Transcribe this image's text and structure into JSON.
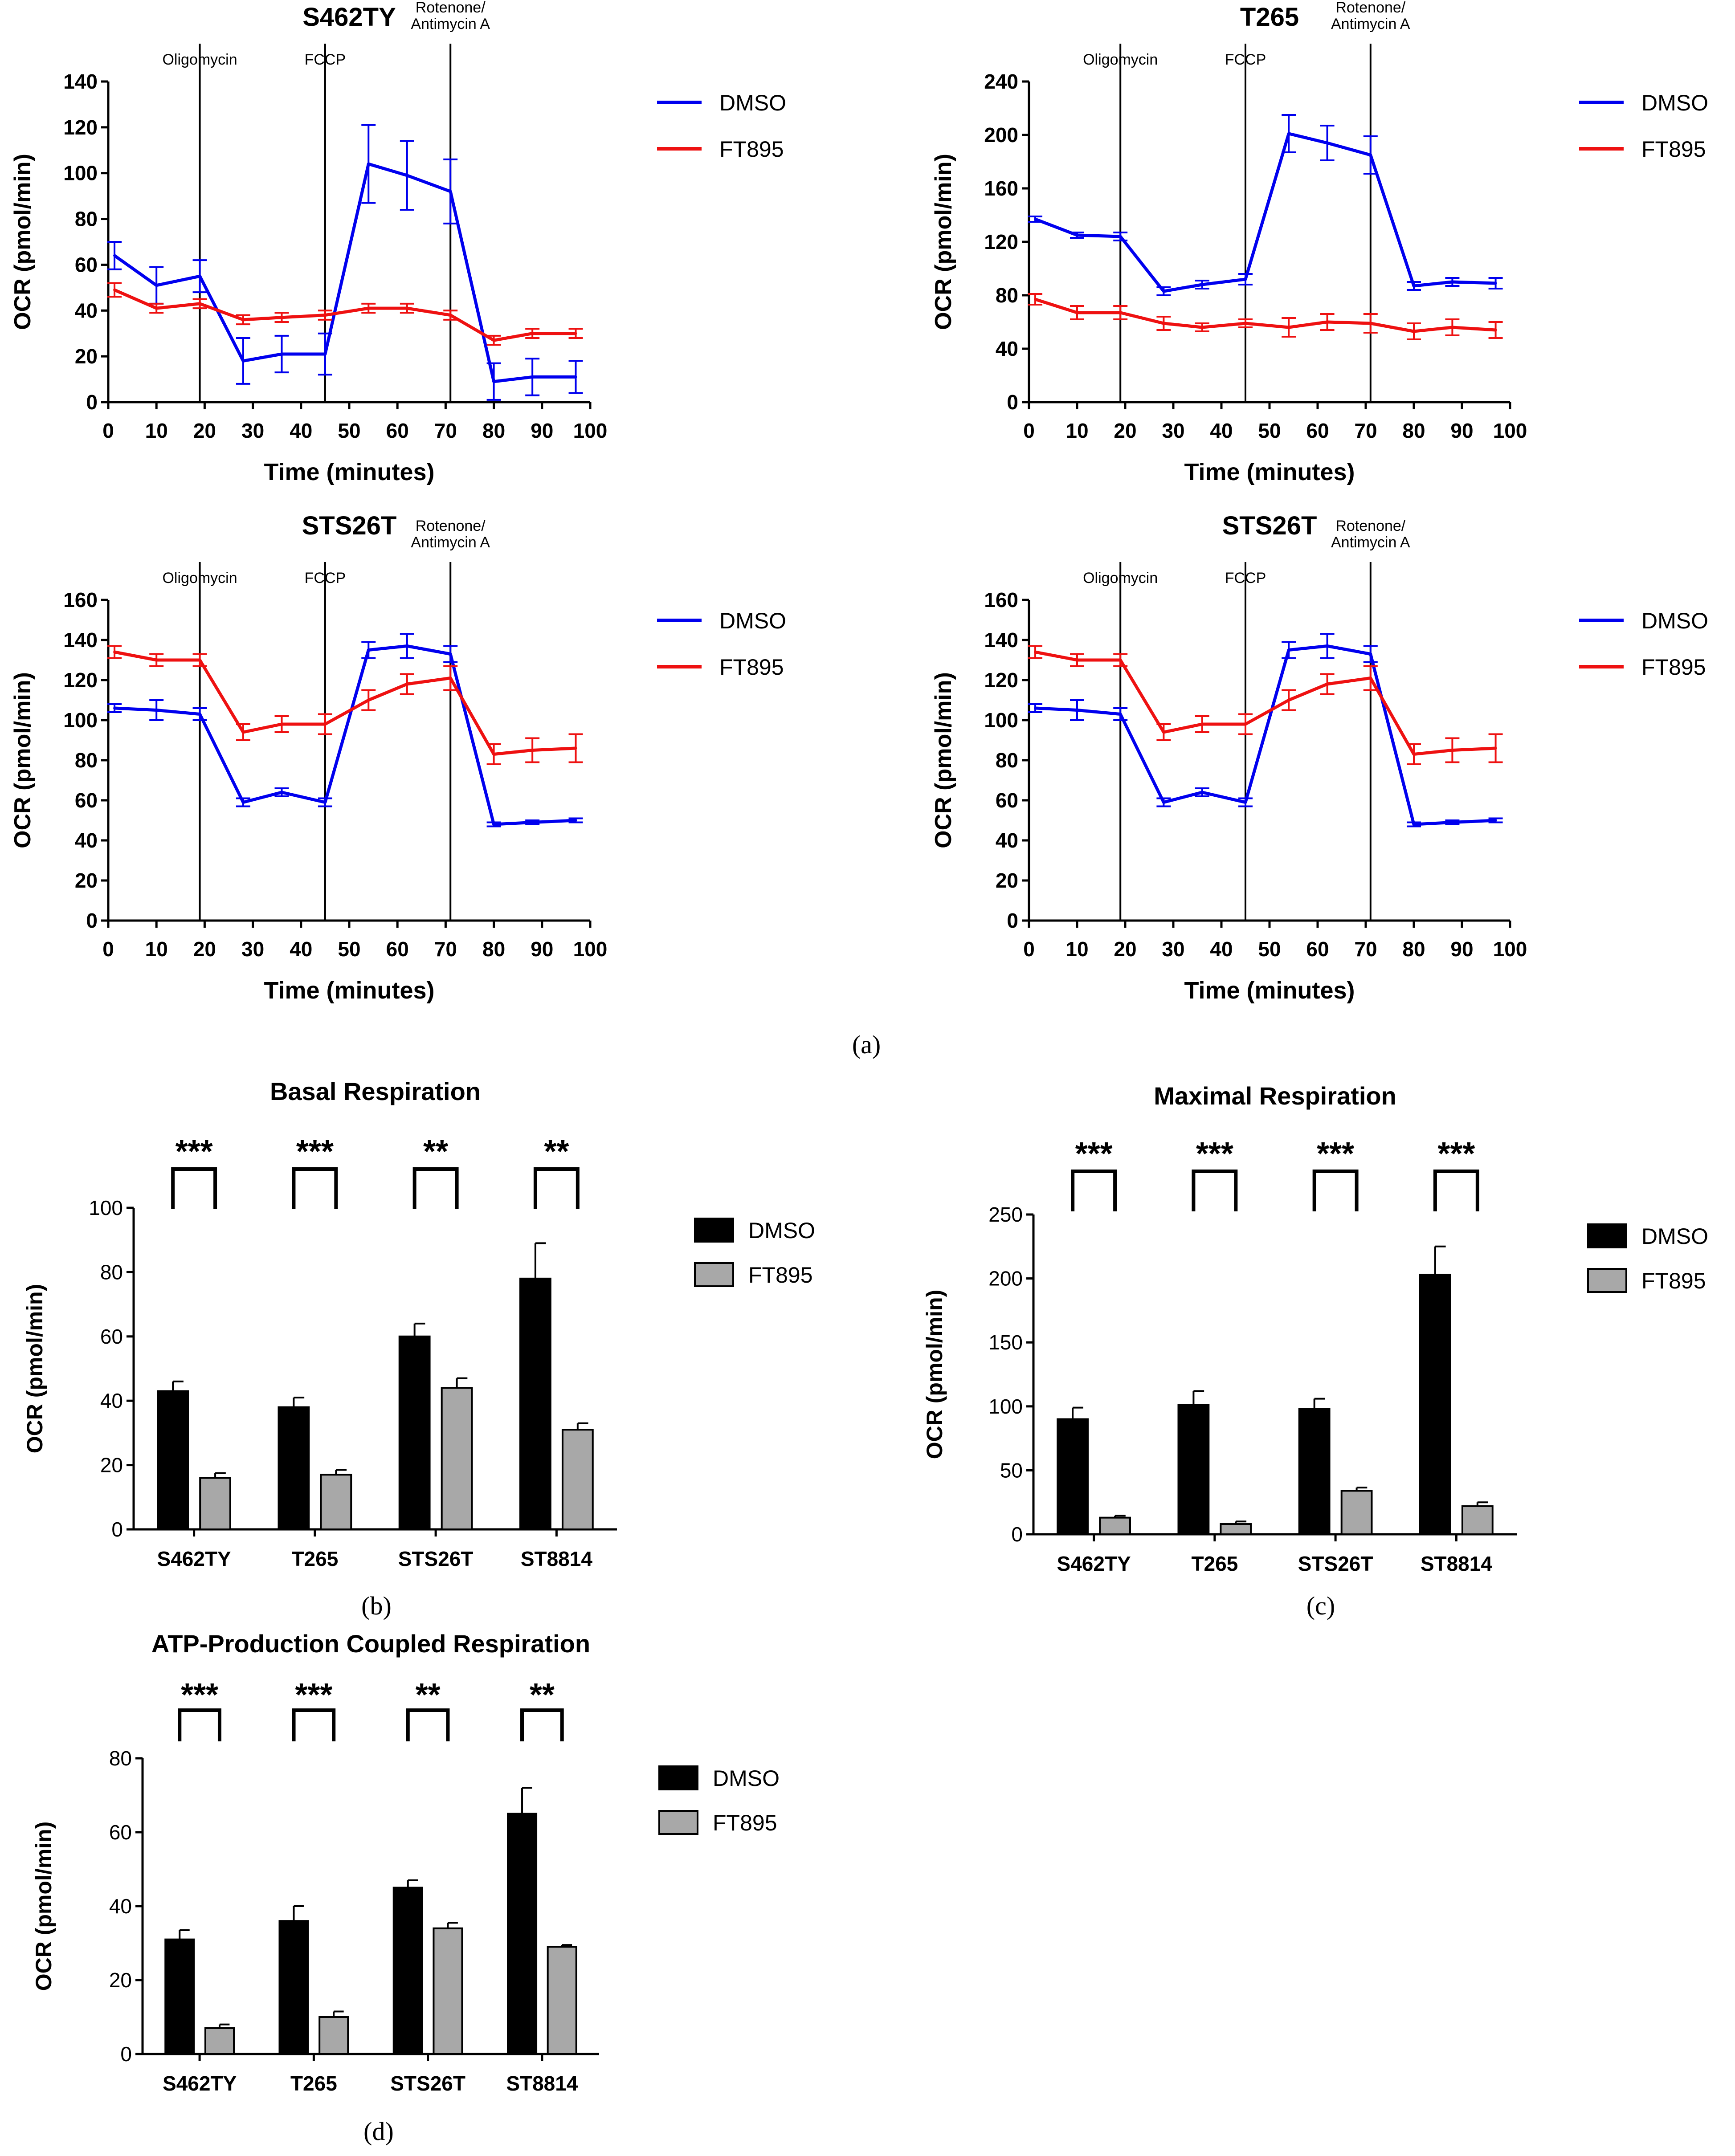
{
  "colors": {
    "dmso_line": "#0000ee",
    "ft895_line": "#ee1111",
    "dmso_bar": "#000000",
    "ft895_bar": "#a8a8a8",
    "axis": "#000000"
  },
  "panel_labels": {
    "a": "(a)",
    "b": "(b)",
    "c": "(c)",
    "d": "(d)"
  },
  "chart_data": [
    {
      "id": "a1",
      "type": "line",
      "title": "S462TY",
      "xlabel": "Time (minutes)",
      "ylabel": "OCR (pmol/min)",
      "xlim": [
        0,
        100
      ],
      "ylim": [
        0,
        140
      ],
      "xticks": [
        "0",
        "10",
        "20",
        "30",
        "40",
        "50",
        "60",
        "70",
        "80",
        "90",
        "100"
      ],
      "yticks": [
        "0",
        "20",
        "40",
        "60",
        "80",
        "100",
        "120",
        "140"
      ],
      "legend": [
        "DMSO",
        "FT895"
      ],
      "injections": [
        {
          "x": 19,
          "label": "Oligomycin"
        },
        {
          "x": 45,
          "label": "FCCP"
        },
        {
          "x": 71,
          "label": "Rotenone/ Antimycin A"
        }
      ],
      "x": [
        1.3,
        10,
        19,
        28,
        36,
        45,
        54,
        62,
        71,
        80,
        88,
        97
      ],
      "series": [
        {
          "name": "DMSO",
          "values": [
            64,
            51,
            55,
            18,
            21,
            21,
            104,
            99,
            92,
            9,
            11,
            11
          ],
          "errors": [
            6,
            8,
            7,
            10,
            8,
            9,
            17,
            15,
            14,
            8,
            8,
            7
          ]
        },
        {
          "name": "FT895",
          "values": [
            49,
            41,
            43,
            36,
            37,
            38,
            41,
            41,
            38,
            27,
            30,
            30
          ],
          "errors": [
            3,
            2,
            2,
            2,
            2,
            2,
            2,
            2,
            2,
            2,
            2,
            2
          ]
        }
      ]
    },
    {
      "id": "a2",
      "type": "line",
      "title": "T265",
      "xlabel": "Time (minutes)",
      "ylabel": "OCR (pmol/min)",
      "xlim": [
        0,
        100
      ],
      "ylim": [
        0,
        240
      ],
      "xticks": [
        "0",
        "10",
        "20",
        "30",
        "40",
        "50",
        "60",
        "70",
        "80",
        "90",
        "100"
      ],
      "yticks": [
        "0",
        "40",
        "80",
        "120",
        "160",
        "200",
        "240"
      ],
      "legend": [
        "DMSO",
        "FT895"
      ],
      "injections": [
        {
          "x": 19,
          "label": "Oligomycin"
        },
        {
          "x": 45,
          "label": "FCCP"
        },
        {
          "x": 71,
          "label": "Rotenone/ Antimycin A"
        }
      ],
      "x": [
        1.3,
        10,
        19,
        28,
        36,
        45,
        54,
        62,
        71,
        80,
        88,
        97
      ],
      "series": [
        {
          "name": "DMSO",
          "values": [
            137,
            125,
            124,
            83,
            88,
            92,
            201,
            194,
            185,
            87,
            90,
            89
          ],
          "errors": [
            2,
            2,
            3,
            3,
            3,
            4,
            14,
            13,
            14,
            3,
            3,
            4
          ]
        },
        {
          "name": "FT895",
          "values": [
            77,
            67,
            67,
            59,
            56,
            59,
            56,
            60,
            59,
            53,
            56,
            54
          ],
          "errors": [
            4,
            5,
            5,
            5,
            3,
            3,
            7,
            6,
            7,
            6,
            6,
            6
          ]
        }
      ]
    },
    {
      "id": "a3",
      "type": "line",
      "title": "STS26T",
      "xlabel": "Time (minutes)",
      "ylabel": "OCR (pmol/min)",
      "xlim": [
        0,
        100
      ],
      "ylim": [
        0,
        160
      ],
      "xticks": [
        "0",
        "10",
        "20",
        "30",
        "40",
        "50",
        "60",
        "70",
        "80",
        "90",
        "100"
      ],
      "yticks": [
        "0",
        "20",
        "40",
        "60",
        "80",
        "100",
        "120",
        "140",
        "160"
      ],
      "legend": [
        "DMSO",
        "FT895"
      ],
      "injections": [
        {
          "x": 19,
          "label": "Oligomycin"
        },
        {
          "x": 45,
          "label": "FCCP"
        },
        {
          "x": 71,
          "label": "Rotenone/ Antimycin A"
        }
      ],
      "x": [
        1.3,
        10,
        19,
        28,
        36,
        45,
        54,
        62,
        71,
        80,
        88,
        97
      ],
      "series": [
        {
          "name": "DMSO",
          "values": [
            106,
            105,
            103,
            59,
            64,
            59,
            135,
            137,
            133,
            48,
            49,
            50
          ],
          "errors": [
            2,
            5,
            3,
            2,
            2,
            2,
            4,
            6,
            4,
            1,
            1,
            1
          ]
        },
        {
          "name": "FT895",
          "values": [
            134,
            130,
            130,
            94,
            98,
            98,
            110,
            118,
            121,
            83,
            85,
            86
          ],
          "errors": [
            3,
            3,
            3,
            4,
            4,
            5,
            5,
            5,
            6,
            5,
            6,
            7
          ]
        }
      ]
    },
    {
      "id": "a4",
      "type": "line",
      "title": "STS26T",
      "xlabel": "Time (minutes)",
      "ylabel": "OCR (pmol/min)",
      "xlim": [
        0,
        100
      ],
      "ylim": [
        0,
        160
      ],
      "xticks": [
        "0",
        "10",
        "20",
        "30",
        "40",
        "50",
        "60",
        "70",
        "80",
        "90",
        "100"
      ],
      "yticks": [
        "0",
        "20",
        "40",
        "60",
        "80",
        "100",
        "120",
        "140",
        "160"
      ],
      "legend": [
        "DMSO",
        "FT895"
      ],
      "injections": [
        {
          "x": 19,
          "label": "Oligomycin"
        },
        {
          "x": 45,
          "label": "FCCP"
        },
        {
          "x": 71,
          "label": "Rotenone/ Antimycin A"
        }
      ],
      "x": [
        1.3,
        10,
        19,
        28,
        36,
        45,
        54,
        62,
        71,
        80,
        88,
        97
      ],
      "series": [
        {
          "name": "DMSO",
          "values": [
            106,
            105,
            103,
            59,
            64,
            59,
            135,
            137,
            133,
            48,
            49,
            50
          ],
          "errors": [
            2,
            5,
            3,
            2,
            2,
            2,
            4,
            6,
            4,
            1,
            1,
            1
          ]
        },
        {
          "name": "FT895",
          "values": [
            134,
            130,
            130,
            94,
            98,
            98,
            110,
            118,
            121,
            83,
            85,
            86
          ],
          "errors": [
            3,
            3,
            3,
            4,
            4,
            5,
            5,
            5,
            6,
            5,
            6,
            7
          ]
        }
      ]
    },
    {
      "id": "b",
      "type": "bar",
      "title": "Basal Respiration",
      "xlabel": "",
      "ylabel": "OCR (pmol/min)",
      "ylim": [
        0,
        100
      ],
      "yticks": [
        "0",
        "20",
        "40",
        "60",
        "80",
        "100"
      ],
      "categories": [
        "S462TY",
        "T265",
        "STS26T",
        "ST8814"
      ],
      "legend": [
        "DMSO",
        "FT895"
      ],
      "significance": [
        "***",
        "***",
        "**",
        "**"
      ],
      "series": [
        {
          "name": "DMSO",
          "values": [
            43,
            38,
            60,
            78
          ],
          "errors": [
            3,
            3,
            4,
            11
          ]
        },
        {
          "name": "FT895",
          "values": [
            16,
            17,
            44,
            31
          ],
          "errors": [
            1.5,
            1.5,
            3,
            2
          ]
        }
      ]
    },
    {
      "id": "c",
      "type": "bar",
      "title": "Maximal Respiration",
      "xlabel": "",
      "ylabel": "OCR (pmol/min)",
      "ylim": [
        0,
        250
      ],
      "yticks": [
        "0",
        "50",
        "100",
        "150",
        "200",
        "250"
      ],
      "categories": [
        "S462TY",
        "T265",
        "STS26T",
        "ST8814"
      ],
      "legend": [
        "DMSO",
        "FT895"
      ],
      "significance": [
        "***",
        "***",
        "***",
        "***"
      ],
      "series": [
        {
          "name": "DMSO",
          "values": [
            90,
            101,
            98,
            203
          ],
          "errors": [
            9,
            11,
            8,
            22
          ]
        },
        {
          "name": "FT895",
          "values": [
            13,
            8,
            34,
            22
          ],
          "errors": [
            1.5,
            2,
            2.5,
            3
          ]
        }
      ]
    },
    {
      "id": "d",
      "type": "bar",
      "title": "ATP-Production Coupled Respiration",
      "xlabel": "",
      "ylabel": "OCR (pmol/min)",
      "ylim": [
        0,
        80
      ],
      "yticks": [
        "0",
        "20",
        "40",
        "60",
        "80"
      ],
      "categories": [
        "S462TY",
        "T265",
        "STS26T",
        "ST8814"
      ],
      "legend": [
        "DMSO",
        "FT895"
      ],
      "significance": [
        "***",
        "***",
        "**",
        "**"
      ],
      "series": [
        {
          "name": "DMSO",
          "values": [
            31,
            36,
            45,
            65
          ],
          "errors": [
            2.5,
            4,
            2,
            7
          ]
        },
        {
          "name": "FT895",
          "values": [
            7,
            10,
            34,
            29
          ],
          "errors": [
            1,
            1.5,
            1.5,
            0.5
          ]
        }
      ]
    }
  ]
}
